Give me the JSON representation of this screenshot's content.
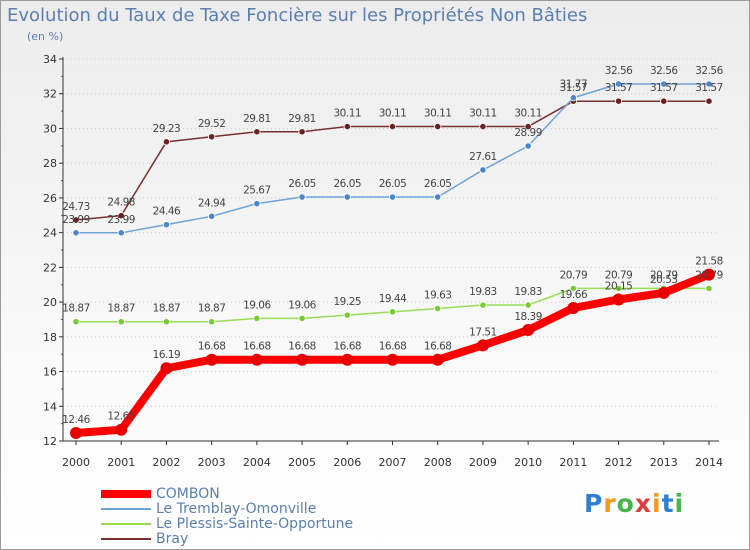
{
  "title": "Evolution du Taux de Taxe Foncière sur les Propriétés Non Bâties",
  "subtitle": "(en %)",
  "logo": "Proxiti",
  "colors": {
    "combon": "#ff0000",
    "tremblay": "#6fa3d6",
    "plessis": "#99dd55",
    "bray": "#7a2f2f",
    "axis": "#333333",
    "text": "#5a7fb0",
    "grid": "#cccccc"
  },
  "chart_data": {
    "type": "line",
    "title": "Evolution du Taux de Taxe Foncière sur les Propriétés Non Bâties",
    "ylabel": "(en %)",
    "xlabel": "",
    "ylim": [
      12,
      34
    ],
    "yticks": [
      12,
      14,
      16,
      18,
      20,
      22,
      24,
      26,
      28,
      30,
      32,
      34
    ],
    "categories": [
      "2000",
      "2001",
      "2002",
      "2003",
      "2004",
      "2005",
      "2006",
      "2007",
      "2008",
      "2009",
      "2010",
      "2011",
      "2012",
      "2013",
      "2014"
    ],
    "series": [
      {
        "name": "COMBON",
        "key": "combon",
        "values": [
          12.46,
          12.65,
          16.19,
          16.68,
          16.68,
          16.68,
          16.68,
          16.68,
          16.68,
          17.51,
          18.39,
          19.66,
          20.15,
          20.53,
          21.58
        ]
      },
      {
        "name": "Le Tremblay-Omonville",
        "key": "tremblay",
        "values": [
          23.99,
          23.99,
          24.46,
          24.94,
          25.67,
          26.05,
          26.05,
          26.05,
          26.05,
          27.61,
          28.99,
          31.77,
          32.56,
          32.56,
          32.56
        ]
      },
      {
        "name": "Le Plessis-Sainte-Opportune",
        "key": "plessis",
        "values": [
          18.87,
          18.87,
          18.87,
          18.87,
          19.06,
          19.06,
          19.25,
          19.44,
          19.63,
          19.83,
          19.83,
          20.79,
          20.79,
          20.79,
          20.79
        ]
      },
      {
        "name": "Bray",
        "key": "bray",
        "values": [
          24.73,
          24.98,
          29.23,
          29.52,
          29.81,
          29.81,
          30.11,
          30.11,
          30.11,
          30.11,
          30.11,
          31.57,
          31.57,
          31.57,
          31.57
        ]
      }
    ]
  },
  "legend": [
    {
      "label": "COMBON",
      "key": "combon"
    },
    {
      "label": "Le Tremblay-Omonville",
      "key": "tremblay"
    },
    {
      "label": "Le Plessis-Sainte-Opportune",
      "key": "plessis"
    },
    {
      "label": "Bray",
      "key": "bray"
    }
  ]
}
